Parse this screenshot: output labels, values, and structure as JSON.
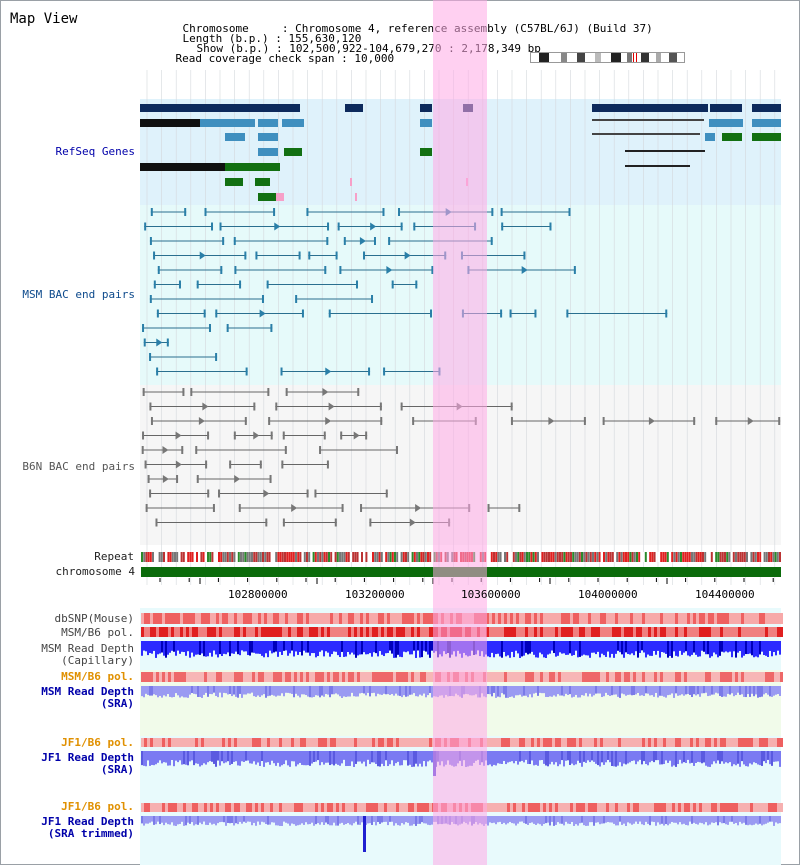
{
  "view": {
    "title": "Map View",
    "info": {
      "chromosome_label": "Chromosome",
      "chromosome_value": "Chromosome 4, reference assembly (C57BL/6J) (Build 37)",
      "length_label": "Length (b.p.)",
      "length_value": "155,630,120",
      "show_label": "Show (b.p.)",
      "show_value": "102,500,922-104,679,270 : 2,178,349 bp",
      "coverage_label": "Read coverage check span",
      "coverage_value": "10,000"
    }
  },
  "tracks": {
    "refseq": "RefSeq Genes",
    "msm_bac": "MSM BAC end pairs",
    "b6n_bac": "B6N BAC end pairs",
    "repeat": "Repeat",
    "chromosome": "chromosome 4",
    "dbsnp": "dbSNP(Mouse)",
    "msm_b6_pol": "MSM/B6 pol.",
    "msm_read_depth_cap_1": "MSM Read Depth",
    "msm_read_depth_cap_2": "(Capillary)",
    "msm_b6_pol_2": "MSM/B6 pol.",
    "msm_read_depth_sra_1": "MSM Read Depth",
    "msm_read_depth_sra_2": "(SRA)",
    "jf1_b6_pol": "JF1/B6 pol.",
    "jf1_read_depth_sra_1": "JF1 Read Depth",
    "jf1_read_depth_sra_2": "(SRA)",
    "jf1_b6_pol_2": "JF1/B6 pol.",
    "jf1_read_depth_trim_1": "JF1 Read Depth",
    "jf1_read_depth_trim_2": "(SRA trimmed)"
  },
  "axis": {
    "ticks": [
      "102800000",
      "103200000",
      "103600000",
      "104000000",
      "104400000"
    ]
  },
  "colors": {
    "refseq_navy": "#0d2a5c",
    "refseq_steel": "#3f8fbf",
    "refseq_green": "#127012",
    "highlight": "#ffb0e6",
    "msm_label": "#0d4a8c",
    "pol_label": "#e09000",
    "depth_label": "#0000aa"
  }
}
